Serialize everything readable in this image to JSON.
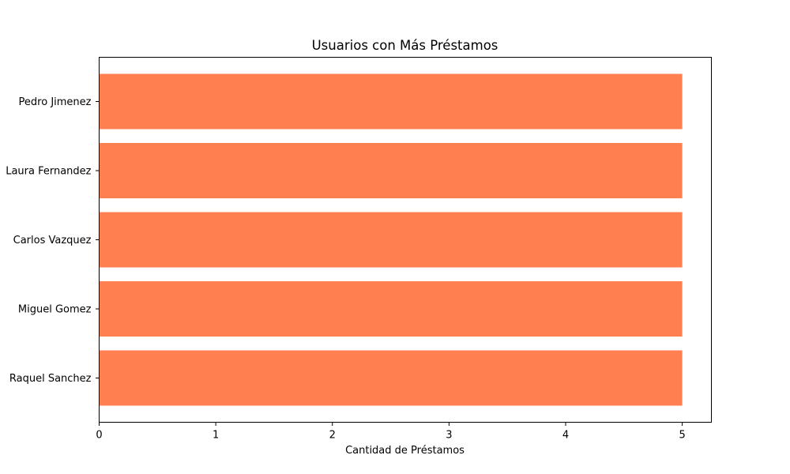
{
  "chart_data": {
    "type": "bar",
    "orientation": "horizontal",
    "title": "Usuarios con Más Préstamos",
    "xlabel": "Cantidad de Préstamos",
    "ylabel": "",
    "categories": [
      "Pedro Jimenez",
      "Laura Fernandez",
      "Carlos Vazquez",
      "Miguel Gomez",
      "Raquel Sanchez"
    ],
    "values": [
      5,
      5,
      5,
      5,
      5
    ],
    "xlim": [
      0,
      5.25
    ],
    "xticks": [
      0,
      1,
      2,
      3,
      4,
      5
    ],
    "bar_color": "#ff7f50",
    "grid": false,
    "legend": "none"
  }
}
